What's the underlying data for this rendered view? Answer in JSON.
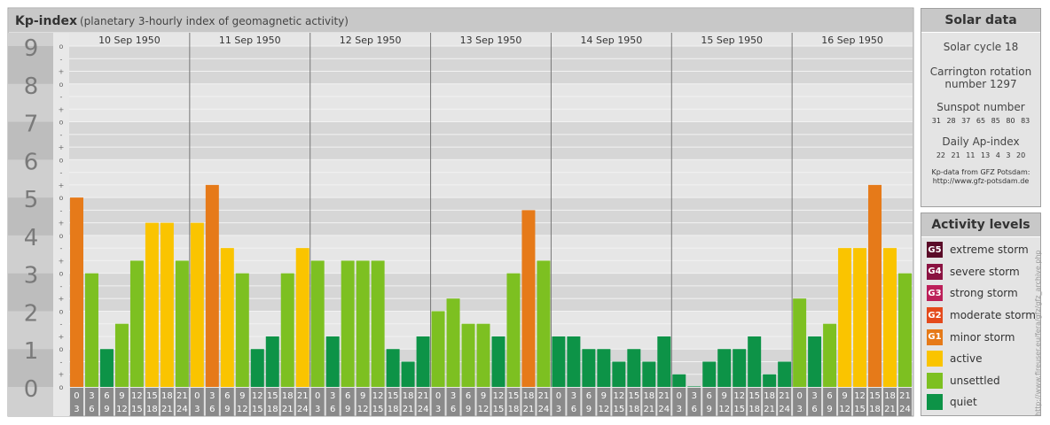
{
  "chart_data": {
    "type": "bar",
    "title": "Kp-index",
    "subtitle": "(planetary 3-hourly index of geomagnetic activity)",
    "y_ticks": [
      "0",
      "1",
      "2",
      "3",
      "4",
      "5",
      "6",
      "7",
      "8",
      "9"
    ],
    "y_minor_labels": [
      "o",
      "+",
      "-",
      "o",
      "+",
      "-",
      "o",
      "+",
      "-",
      "o",
      "+",
      "-",
      "o",
      "+",
      "-",
      "o",
      "+",
      "-",
      "o",
      "+",
      "-",
      "o",
      "+",
      "-",
      "o",
      "+",
      "-",
      "o"
    ],
    "ylim": [
      0,
      9
    ],
    "days": [
      "10 Sep 1950",
      "11 Sep 1950",
      "12 Sep 1950",
      "13 Sep 1950",
      "14 Sep 1950",
      "15 Sep 1950",
      "16 Sep 1950"
    ],
    "hour_start": [
      "0",
      "3",
      "6",
      "9",
      "12",
      "15",
      "18",
      "21"
    ],
    "hour_end": [
      "3",
      "6",
      "9",
      "12",
      "15",
      "18",
      "21",
      "24"
    ],
    "values": [
      [
        5.0,
        3.0,
        1.0,
        1.667,
        3.333,
        4.333,
        4.333,
        3.333
      ],
      [
        4.333,
        5.333,
        3.667,
        3.0,
        1.0,
        1.333,
        3.0,
        3.667
      ],
      [
        3.333,
        1.333,
        3.333,
        3.333,
        3.333,
        1.0,
        0.667,
        1.333
      ],
      [
        2.0,
        2.333,
        1.667,
        1.667,
        1.333,
        3.0,
        4.667,
        3.333
      ],
      [
        1.333,
        1.333,
        1.0,
        1.0,
        0.667,
        1.0,
        0.667,
        1.333
      ],
      [
        0.333,
        0.0,
        0.667,
        1.0,
        1.0,
        1.333,
        0.333,
        0.667
      ],
      [
        2.333,
        1.333,
        1.667,
        3.667,
        3.667,
        5.333,
        3.667,
        3.0
      ]
    ],
    "grid": true
  },
  "colors": {
    "quiet": "#0d9347",
    "unsettled": "#7dc021",
    "active": "#fac400",
    "minor_storm": "#e67a19",
    "moderate_storm": "#e44a1c",
    "strong_storm": "#bc1f59",
    "severe_storm": "#8a1241",
    "extreme_storm": "#5a0b28"
  },
  "solar_data": {
    "title": "Solar data",
    "solar_cycle": "Solar cycle 18",
    "carrington_line1": "Carrington rotation",
    "carrington_line2": "number 1297",
    "sunspot_title": "Sunspot number",
    "sunspot_values": "31 28 37 65 85 80 83",
    "ap_title": "Daily Ap-index",
    "ap_values": "22 21 11 13 4 3 20",
    "credit_line1": "Kp-data from GFZ Potsdam:",
    "credit_line2": "http://www.gfz-potsdam.de"
  },
  "activity_levels": {
    "title": "Activity levels",
    "items": [
      {
        "badge": "G5",
        "label": "extreme storm",
        "color": "#5a0b28"
      },
      {
        "badge": "G4",
        "label": "severe storm",
        "color": "#8a1241"
      },
      {
        "badge": "G3",
        "label": "strong storm",
        "color": "#bc1f59"
      },
      {
        "badge": "G2",
        "label": "moderate storm",
        "color": "#e44a1c"
      },
      {
        "badge": "G1",
        "label": "minor storm",
        "color": "#e67a19"
      },
      {
        "badge": "",
        "label": "active",
        "color": "#fac400"
      },
      {
        "badge": "",
        "label": "unsettled",
        "color": "#7dc021"
      },
      {
        "badge": "",
        "label": "quiet",
        "color": "#0d9347"
      }
    ]
  },
  "watermark": "http://www.fireuser.eu/fera/gfz/gfz_archive.php"
}
